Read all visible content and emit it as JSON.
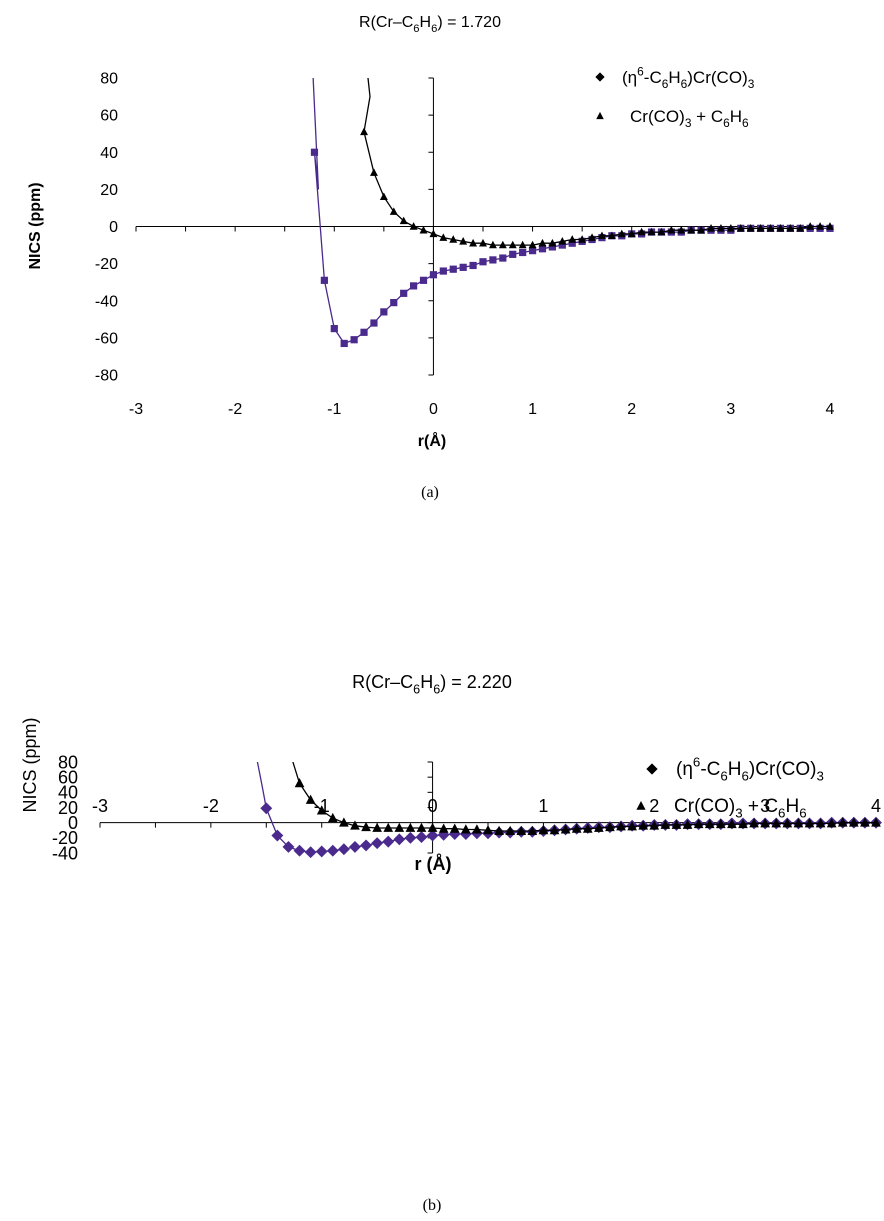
{
  "chart_data": [
    {
      "type": "scatter",
      "panel_label": "(a)",
      "title": "R(Cr–C6H6) = 1.720",
      "xlabel": "r(Å)",
      "ylabel": "NICS (ppm)",
      "xlim": [
        -3,
        4
      ],
      "ylim": [
        -80,
        80
      ],
      "xticks": [
        "-3",
        "-2",
        "-1",
        "0",
        "1",
        "2",
        "3",
        "4"
      ],
      "yticks": [
        "80",
        "60",
        "40",
        "20",
        "0",
        "-20",
        "-40",
        "-60",
        "-80"
      ],
      "grid": false,
      "legend_position": "top-right",
      "series": [
        {
          "name": "(η6-C6H6)Cr(CO)3",
          "color": "#4a2a8c",
          "marker": "square",
          "x": [
            -1.2,
            -1.1,
            -1.0,
            -0.9,
            -0.8,
            -0.7,
            -0.6,
            -0.5,
            -0.4,
            -0.3,
            -0.2,
            -0.1,
            0.0,
            0.1,
            0.2,
            0.3,
            0.4,
            0.5,
            0.6,
            0.7,
            0.8,
            0.9,
            1.0,
            1.1,
            1.2,
            1.3,
            1.4,
            1.5,
            1.6,
            1.7,
            1.8,
            1.9,
            2.0,
            2.1,
            2.2,
            2.3,
            2.4,
            2.5,
            2.6,
            2.7,
            2.8,
            2.9,
            3.0,
            3.1,
            3.2,
            3.3,
            3.4,
            3.5,
            3.6,
            3.7,
            3.8,
            3.9,
            4.0
          ],
          "y": [
            40,
            -29,
            -55,
            -63,
            -61,
            -57,
            -52,
            -46,
            -41,
            -36,
            -32,
            -29,
            -26,
            -24,
            -23,
            -22,
            -21,
            -19,
            -18,
            -17,
            -15,
            -14,
            -13,
            -12,
            -11,
            -10,
            -9,
            -8,
            -7,
            -6,
            -5,
            -5,
            -4,
            -4,
            -3,
            -3,
            -3,
            -3,
            -2,
            -2,
            -2,
            -2,
            -2,
            -1,
            -1,
            -1,
            -1,
            -1,
            -1,
            -1,
            -1,
            -1,
            -1
          ]
        },
        {
          "name": "Cr(CO)3 + C6H6",
          "color": "#000000",
          "marker": "triangle",
          "x": [
            -0.7,
            -0.6,
            -0.5,
            -0.4,
            -0.3,
            -0.2,
            -0.1,
            0.0,
            0.1,
            0.2,
            0.3,
            0.4,
            0.5,
            0.6,
            0.7,
            0.8,
            0.9,
            1.0,
            1.1,
            1.2,
            1.3,
            1.4,
            1.5,
            1.6,
            1.7,
            1.8,
            1.9,
            2.0,
            2.1,
            2.2,
            2.3,
            2.4,
            2.5,
            2.6,
            2.7,
            2.8,
            2.9,
            3.0,
            3.1,
            3.2,
            3.3,
            3.4,
            3.5,
            3.6,
            3.7,
            3.8,
            3.9,
            4.0
          ],
          "y": [
            51,
            29,
            16,
            8,
            3,
            0,
            -2,
            -4,
            -6,
            -7,
            -8,
            -9,
            -9,
            -10,
            -10,
            -10,
            -10,
            -10,
            -9,
            -9,
            -8,
            -7,
            -7,
            -6,
            -5,
            -5,
            -4,
            -4,
            -3,
            -3,
            -3,
            -2,
            -2,
            -2,
            -2,
            -1,
            -1,
            -1,
            -1,
            -1,
            -1,
            -1,
            -1,
            -1,
            -1,
            0,
            0,
            0
          ]
        }
      ]
    },
    {
      "type": "scatter",
      "panel_label": "(b)",
      "title": "R(Cr–C6H6) = 2.220",
      "xlabel": "r (Å)",
      "ylabel": "NICS (ppm)",
      "xlim": [
        -3,
        4
      ],
      "ylim": [
        -40,
        80
      ],
      "xticks": [
        "-3",
        "-2",
        "-1",
        "0",
        "1",
        "2",
        "3",
        "4"
      ],
      "yticks": [
        "80",
        "60",
        "40",
        "20",
        "0",
        "-20",
        "-40"
      ],
      "grid": false,
      "legend_position": "top-right",
      "series": [
        {
          "name": "(η6-C6H6)Cr(CO)3",
          "color": "#4a2a8c",
          "marker": "diamond",
          "x": [
            -1.5,
            -1.4,
            -1.3,
            -1.2,
            -1.1,
            -1.0,
            -0.9,
            -0.8,
            -0.7,
            -0.6,
            -0.5,
            -0.4,
            -0.3,
            -0.2,
            -0.1,
            0.0,
            0.1,
            0.2,
            0.3,
            0.4,
            0.5,
            0.6,
            0.7,
            0.8,
            0.9,
            1.0,
            1.1,
            1.2,
            1.3,
            1.4,
            1.5,
            1.6,
            1.7,
            1.8,
            1.9,
            2.0,
            2.1,
            2.2,
            2.3,
            2.4,
            2.5,
            2.6,
            2.7,
            2.8,
            2.9,
            3.0,
            3.1,
            3.2,
            3.3,
            3.4,
            3.5,
            3.6,
            3.7,
            3.8,
            3.9,
            4.0
          ],
          "y": [
            19,
            -17,
            -32,
            -37,
            -39,
            -38,
            -37,
            -35,
            -32,
            -30,
            -27,
            -25,
            -22,
            -20,
            -19,
            -17,
            -16,
            -15,
            -15,
            -14,
            -14,
            -13,
            -13,
            -12,
            -12,
            -11,
            -10,
            -9,
            -8,
            -7,
            -6,
            -6,
            -5,
            -4,
            -4,
            -3,
            -3,
            -3,
            -2,
            -2,
            -2,
            -2,
            -1,
            -1,
            -1,
            -1,
            -1,
            -1,
            -1,
            -1,
            -1,
            0,
            0,
            0,
            0,
            0
          ]
        },
        {
          "name": "Cr(CO)3 + C6H6",
          "color": "#000000",
          "marker": "triangle",
          "x": [
            -1.2,
            -1.1,
            -1.0,
            -0.9,
            -0.8,
            -0.7,
            -0.6,
            -0.5,
            -0.4,
            -0.3,
            -0.2,
            -0.1,
            0.0,
            0.1,
            0.2,
            0.3,
            0.4,
            0.5,
            0.6,
            0.7,
            0.8,
            0.9,
            1.0,
            1.1,
            1.2,
            1.3,
            1.4,
            1.5,
            1.6,
            1.7,
            1.8,
            1.9,
            2.0,
            2.1,
            2.2,
            2.3,
            2.4,
            2.5,
            2.6,
            2.7,
            2.8,
            2.9,
            3.0,
            3.1,
            3.2,
            3.3,
            3.4,
            3.5,
            3.6,
            3.7,
            3.8,
            3.9,
            4.0
          ],
          "y": [
            52,
            30,
            16,
            6,
            0,
            -4,
            -6,
            -7,
            -7,
            -7,
            -7,
            -7,
            -7,
            -8,
            -8,
            -9,
            -9,
            -10,
            -11,
            -11,
            -11,
            -11,
            -10,
            -10,
            -9,
            -8,
            -8,
            -7,
            -6,
            -5,
            -5,
            -4,
            -4,
            -3,
            -3,
            -3,
            -2,
            -2,
            -2,
            -2,
            -2,
            -1,
            -1,
            -1,
            -1,
            -1,
            -1,
            -1,
            -1,
            0,
            0,
            0,
            0
          ]
        }
      ]
    }
  ]
}
